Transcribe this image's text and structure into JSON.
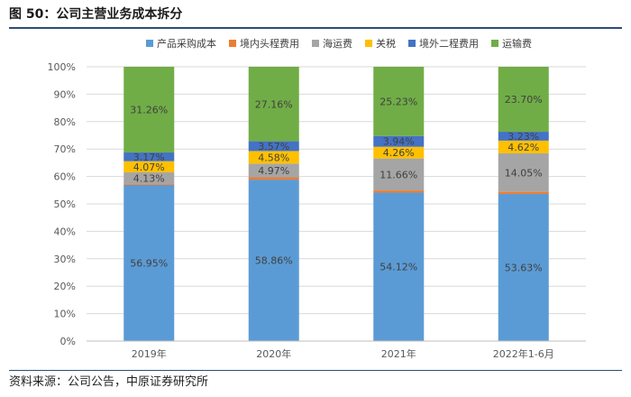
{
  "title": "图 50：公司主营业务成本拆分",
  "source": "资料来源：公司公告，中原证券研究所",
  "chart_data": {
    "type": "bar",
    "stacked": true,
    "categories": [
      "2019年",
      "2020年",
      "2021年",
      "2022年1-6月"
    ],
    "ylim": [
      0,
      100
    ],
    "yticks": [
      "0%",
      "10%",
      "20%",
      "30%",
      "40%",
      "50%",
      "60%",
      "70%",
      "80%",
      "90%",
      "100%"
    ],
    "legend_position": "top",
    "series": [
      {
        "name": "产品采购成本",
        "color": "#5b9bd5",
        "values": [
          56.95,
          58.86,
          54.12,
          53.63
        ],
        "labels": [
          "56.95%",
          "58.86%",
          "54.12%",
          "53.63%"
        ]
      },
      {
        "name": "境内头程费用",
        "color": "#ed7d31",
        "values": [
          0.42,
          0.86,
          0.79,
          0.77
        ],
        "labels": [
          "",
          "",
          "",
          ""
        ]
      },
      {
        "name": "海运费",
        "color": "#a5a5a5",
        "values": [
          4.13,
          4.97,
          11.66,
          14.05
        ],
        "labels": [
          "4.13%",
          "4.97%",
          "11.66%",
          "14.05%"
        ]
      },
      {
        "name": "关税",
        "color": "#ffc000",
        "values": [
          4.07,
          4.58,
          4.26,
          4.62
        ],
        "labels": [
          "4.07%",
          "4.58%",
          "4.26%",
          "4.62%"
        ]
      },
      {
        "name": "境外二程费用",
        "color": "#4472c4",
        "values": [
          3.17,
          3.57,
          3.94,
          3.23
        ],
        "labels": [
          "3.17%",
          "3.57%",
          "3.94%",
          "3.23%"
        ]
      },
      {
        "name": "运输费",
        "color": "#70ad47",
        "values": [
          31.26,
          27.16,
          25.23,
          23.7
        ],
        "labels": [
          "31.26%",
          "27.16%",
          "25.23%",
          "23.70%"
        ]
      }
    ]
  }
}
